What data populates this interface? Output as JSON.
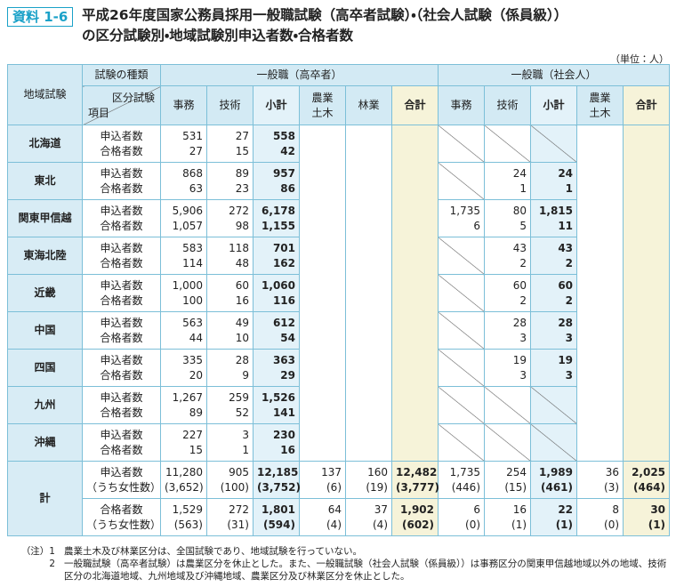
{
  "header": {
    "label": "資料 1-6",
    "title_lines": [
      "平成26年度国家公務員採用一般職試験（高卒者試験）・（社会人試験（係員級））",
      "の区分試験別・地域試験別申込者数・合格者数"
    ],
    "unit": "（単位：人）"
  },
  "table": {
    "corner": {
      "region": "地域試験",
      "type": "試験の種類",
      "division": "区分試験",
      "item": "項目"
    },
    "groups": [
      "一般職（高卒者）",
      "一般職（社会人）"
    ],
    "columns": [
      [
        "事務",
        "技術",
        "小計",
        "農業土木",
        "林業",
        "合計"
      ],
      [
        "事務",
        "技術",
        "小計",
        "農業土木",
        "合計"
      ]
    ],
    "regions": [
      {
        "name": "北海道",
        "rows": [
          {
            "item": "申込者数",
            "values": [
              "531",
              "27",
              "558",
              null,
              null,
              null,
              null,
              null,
              null,
              null,
              null
            ]
          },
          {
            "item": "合格者数",
            "values": [
              "27",
              "15",
              "42",
              null,
              null,
              null,
              null,
              null,
              null,
              null,
              null
            ]
          }
        ]
      },
      {
        "name": "東北",
        "rows": [
          {
            "item": "申込者数",
            "values": [
              "868",
              "89",
              "957",
              null,
              null,
              null,
              null,
              "24",
              "24",
              null,
              null
            ]
          },
          {
            "item": "合格者数",
            "values": [
              "63",
              "23",
              "86",
              null,
              null,
              null,
              null,
              "1",
              "1",
              null,
              null
            ]
          }
        ]
      },
      {
        "name": "関東甲信越",
        "rows": [
          {
            "item": "申込者数",
            "values": [
              "5,906",
              "272",
              "6,178",
              null,
              null,
              null,
              "1,735",
              "80",
              "1,815",
              null,
              null
            ]
          },
          {
            "item": "合格者数",
            "values": [
              "1,057",
              "98",
              "1,155",
              null,
              null,
              null,
              "6",
              "5",
              "11",
              null,
              null
            ]
          }
        ]
      },
      {
        "name": "東海北陸",
        "rows": [
          {
            "item": "申込者数",
            "values": [
              "583",
              "118",
              "701",
              null,
              null,
              null,
              null,
              "43",
              "43",
              null,
              null
            ]
          },
          {
            "item": "合格者数",
            "values": [
              "114",
              "48",
              "162",
              null,
              null,
              null,
              null,
              "2",
              "2",
              null,
              null
            ]
          }
        ]
      },
      {
        "name": "近畿",
        "rows": [
          {
            "item": "申込者数",
            "values": [
              "1,000",
              "60",
              "1,060",
              null,
              null,
              null,
              null,
              "60",
              "60",
              null,
              null
            ]
          },
          {
            "item": "合格者数",
            "values": [
              "100",
              "16",
              "116",
              null,
              null,
              null,
              null,
              "2",
              "2",
              null,
              null
            ]
          }
        ]
      },
      {
        "name": "中国",
        "rows": [
          {
            "item": "申込者数",
            "values": [
              "563",
              "49",
              "612",
              null,
              null,
              null,
              null,
              "28",
              "28",
              null,
              null
            ]
          },
          {
            "item": "合格者数",
            "values": [
              "44",
              "10",
              "54",
              null,
              null,
              null,
              null,
              "3",
              "3",
              null,
              null
            ]
          }
        ]
      },
      {
        "name": "四国",
        "rows": [
          {
            "item": "申込者数",
            "values": [
              "335",
              "28",
              "363",
              null,
              null,
              null,
              null,
              "19",
              "19",
              null,
              null
            ]
          },
          {
            "item": "合格者数",
            "values": [
              "20",
              "9",
              "29",
              null,
              null,
              null,
              null,
              "3",
              "3",
              null,
              null
            ]
          }
        ]
      },
      {
        "name": "九州",
        "rows": [
          {
            "item": "申込者数",
            "values": [
              "1,267",
              "259",
              "1,526",
              null,
              null,
              null,
              null,
              null,
              null,
              null,
              null
            ]
          },
          {
            "item": "合格者数",
            "values": [
              "89",
              "52",
              "141",
              null,
              null,
              null,
              null,
              null,
              null,
              null,
              null
            ]
          }
        ]
      },
      {
        "name": "沖縄",
        "rows": [
          {
            "item": "申込者数",
            "values": [
              "227",
              "3",
              "230",
              null,
              null,
              null,
              null,
              null,
              null,
              null,
              null
            ]
          },
          {
            "item": "合格者数",
            "values": [
              "15",
              "1",
              "16",
              null,
              null,
              null,
              null,
              null,
              null,
              null,
              null
            ]
          }
        ]
      }
    ],
    "total": {
      "name": "計",
      "rows": [
        {
          "items": [
            "申込者数",
            "（うち女性数）"
          ],
          "values": [
            [
              "11,280",
              "(3,652)"
            ],
            [
              "905",
              "(100)"
            ],
            [
              "12,185",
              "(3,752)"
            ],
            [
              "137",
              "(6)"
            ],
            [
              "160",
              "(19)"
            ],
            [
              "12,482",
              "(3,777)"
            ],
            [
              "1,735",
              "(446)"
            ],
            [
              "254",
              "(15)"
            ],
            [
              "1,989",
              "(461)"
            ],
            [
              "36",
              "(3)"
            ],
            [
              "2,025",
              "(464)"
            ]
          ]
        },
        {
          "items": [
            "合格者数",
            "（うち女性数）"
          ],
          "values": [
            [
              "1,529",
              "(563)"
            ],
            [
              "272",
              "(31)"
            ],
            [
              "1,801",
              "(594)"
            ],
            [
              "64",
              "(4)"
            ],
            [
              "37",
              "(4)"
            ],
            [
              "1,902",
              "(602)"
            ],
            [
              "6",
              "(0)"
            ],
            [
              "16",
              "(1)"
            ],
            [
              "22",
              "(1)"
            ],
            [
              "8",
              "(0)"
            ],
            [
              "30",
              "(1)"
            ]
          ]
        }
      ]
    }
  },
  "notes": [
    {
      "marker": "（注）1",
      "text": "農業土木及び林業区分は、全国試験であり、地域試験を行っていない。"
    },
    {
      "marker": "2",
      "text": "一般職試験（高卒者試験）は農業区分を休止とした。また、一般職試験（社会人試験（係員級））は事務区分の関東甲信越地域以外の地域、技術区分の北海道地域、九州地域及び沖縄地域、農業区分及び林業区分を休止とした。"
    }
  ]
}
